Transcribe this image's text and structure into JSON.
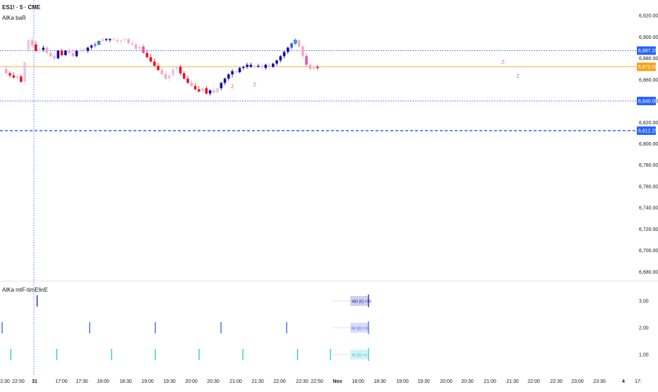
{
  "header": {
    "symbol": "ES1! · 5 · CME",
    "indicator_main": "AlKa baR",
    "indicator_sub": "AlKa mtF-timElinE"
  },
  "colors": {
    "bull_strong": "#1410a8",
    "bull_medium": "#3b5bdb",
    "bull_light": "#e3c8ea",
    "bear_strong": "#ee1122",
    "bear_light": "#f5a8c4",
    "bear_medium": "#e85599",
    "cyan": "#2bb6e8",
    "blue_line": "#2962ff",
    "orange": "#f7a11a",
    "z_marker": "#e056c0"
  },
  "chart_data": [
    {
      "type": "candlestick",
      "x_tick_labels": [
        "2:30",
        "22:50",
        "31",
        "17:00",
        "17:30",
        "18:00",
        "18:30",
        "19:00",
        "19:30",
        "20:00",
        "20:30",
        "21:00",
        "21:30",
        "22:00",
        "22:30",
        "22:50",
        "Nov",
        "18:00",
        "18:30",
        "19:00",
        "19:30",
        "20:00",
        "20:30",
        "21:00",
        "21:30",
        "22:00",
        "22:30",
        "23:00",
        "23:30",
        "4",
        "17:"
      ],
      "y_tick_labels": [
        "6,920.00",
        "6,900.00",
        "6,880.00",
        "6,860.00",
        "6,840.00",
        "6,820.00",
        "6,800.00",
        "6,780.00",
        "6,760.00",
        "6,740.00",
        "6,720.00",
        "6,700.00",
        "6,680.00"
      ],
      "ylim": [
        6674,
        6928
      ],
      "horizontal_lines": [
        {
          "value": 6887.25,
          "label": "6,887.25",
          "style": "dotted"
        },
        {
          "value": 6872.0,
          "label": "6,872.00",
          "style": "solid-orange"
        },
        {
          "value": 6840.0,
          "label": "6,840.00",
          "style": "dotted"
        },
        {
          "value": 6812.25,
          "label": "6,812.25",
          "style": "dashed"
        }
      ],
      "z_markers": [
        {
          "bar": 61,
          "value": 6852,
          "label": "Z"
        },
        {
          "bar": 67,
          "value": 6854,
          "label": "Z"
        },
        {
          "bar": 134,
          "value": 6875,
          "label": "Z"
        },
        {
          "bar": 138,
          "value": 6862,
          "label": "Z"
        }
      ],
      "candles": [
        {
          "o": 6870,
          "h": 6874,
          "l": 6865,
          "c": 6866,
          "k": "bear_light"
        },
        {
          "o": 6866,
          "h": 6868,
          "l": 6862,
          "c": 6864,
          "k": "bear_strong"
        },
        {
          "o": 6864,
          "h": 6867,
          "l": 6861,
          "c": 6862,
          "k": "bear_strong"
        },
        {
          "o": 6862,
          "h": 6865,
          "l": 6860,
          "c": 6863,
          "k": "bear_light"
        },
        {
          "o": 6863,
          "h": 6865,
          "l": 6857,
          "c": 6858,
          "k": "bear_strong"
        },
        {
          "o": 6858,
          "h": 6877,
          "l": 6855,
          "c": 6876,
          "k": "bull_light"
        },
        {
          "o": 6888,
          "h": 6899,
          "l": 6885,
          "c": 6897,
          "k": "bull_light"
        },
        {
          "o": 6897,
          "h": 6900,
          "l": 6890,
          "c": 6892,
          "k": "bear_light"
        },
        {
          "o": 6893,
          "h": 6896,
          "l": 6886,
          "c": 6887,
          "k": "bear_strong"
        },
        {
          "o": 6887,
          "h": 6890,
          "l": 6884,
          "c": 6888,
          "k": "bull_light"
        },
        {
          "o": 6888,
          "h": 6892,
          "l": 6886,
          "c": 6890,
          "k": "bull_strong"
        },
        {
          "o": 6890,
          "h": 6892,
          "l": 6884,
          "c": 6885,
          "k": "bear_light"
        },
        {
          "o": 6885,
          "h": 6888,
          "l": 6881,
          "c": 6882,
          "k": "bear_light"
        },
        {
          "o": 6882,
          "h": 6886,
          "l": 6878,
          "c": 6880,
          "k": "bear_light"
        },
        {
          "o": 6880,
          "h": 6888,
          "l": 6879,
          "c": 6887,
          "k": "bull_strong"
        },
        {
          "o": 6887,
          "h": 6889,
          "l": 6882,
          "c": 6883,
          "k": "bear_strong"
        },
        {
          "o": 6883,
          "h": 6888,
          "l": 6882,
          "c": 6887,
          "k": "bull_strong"
        },
        {
          "o": 6887,
          "h": 6890,
          "l": 6884,
          "c": 6885,
          "k": "bear_light"
        },
        {
          "o": 6885,
          "h": 6888,
          "l": 6881,
          "c": 6882,
          "k": "bear_light"
        },
        {
          "o": 6882,
          "h": 6888,
          "l": 6881,
          "c": 6887,
          "k": "bull_strong"
        },
        {
          "o": 6887,
          "h": 6890,
          "l": 6885,
          "c": 6888,
          "k": "bull_light"
        },
        {
          "o": 6888,
          "h": 6890,
          "l": 6886,
          "c": 6887,
          "k": "bear_light"
        },
        {
          "o": 6887,
          "h": 6891,
          "l": 6885,
          "c": 6890,
          "k": "bull_strong"
        },
        {
          "o": 6890,
          "h": 6893,
          "l": 6888,
          "c": 6892,
          "k": "bull_strong"
        },
        {
          "o": 6892,
          "h": 6895,
          "l": 6890,
          "c": 6893,
          "k": "bull_medium"
        },
        {
          "o": 6893,
          "h": 6897,
          "l": 6892,
          "c": 6896,
          "k": "cyan"
        },
        {
          "o": 6896,
          "h": 6899,
          "l": 6895,
          "c": 6898,
          "k": "bull_light"
        },
        {
          "o": 6898,
          "h": 6899,
          "l": 6896,
          "c": 6897,
          "k": "bull_strong"
        },
        {
          "o": 6897,
          "h": 6899,
          "l": 6895,
          "c": 6898,
          "k": "bull_strong"
        },
        {
          "o": 6898,
          "h": 6900,
          "l": 6896,
          "c": 6897,
          "k": "bull_light"
        },
        {
          "o": 6897,
          "h": 6899,
          "l": 6894,
          "c": 6896,
          "k": "bear_light"
        },
        {
          "o": 6896,
          "h": 6898,
          "l": 6893,
          "c": 6897,
          "k": "bull_light"
        },
        {
          "o": 6897,
          "h": 6899,
          "l": 6895,
          "c": 6898,
          "k": "bull_light"
        },
        {
          "o": 6898,
          "h": 6899,
          "l": 6893,
          "c": 6894,
          "k": "bear_light"
        },
        {
          "o": 6894,
          "h": 6897,
          "l": 6891,
          "c": 6893,
          "k": "bear_light"
        },
        {
          "o": 6893,
          "h": 6895,
          "l": 6888,
          "c": 6889,
          "k": "bear_light"
        },
        {
          "o": 6889,
          "h": 6893,
          "l": 6887,
          "c": 6891,
          "k": "bull_light"
        },
        {
          "o": 6891,
          "h": 6893,
          "l": 6884,
          "c": 6885,
          "k": "bear_medium"
        },
        {
          "o": 6885,
          "h": 6888,
          "l": 6880,
          "c": 6881,
          "k": "bear_strong"
        },
        {
          "o": 6881,
          "h": 6884,
          "l": 6876,
          "c": 6877,
          "k": "bear_strong"
        },
        {
          "o": 6877,
          "h": 6880,
          "l": 6872,
          "c": 6873,
          "k": "bear_strong"
        },
        {
          "o": 6873,
          "h": 6876,
          "l": 6868,
          "c": 6869,
          "k": "bear_strong"
        },
        {
          "o": 6869,
          "h": 6872,
          "l": 6864,
          "c": 6865,
          "k": "bear_light"
        },
        {
          "o": 6865,
          "h": 6868,
          "l": 6860,
          "c": 6861,
          "k": "bear_light"
        },
        {
          "o": 6861,
          "h": 6866,
          "l": 6858,
          "c": 6864,
          "k": "bull_light"
        },
        {
          "o": 6864,
          "h": 6872,
          "l": 6862,
          "c": 6870,
          "k": "bull_light"
        },
        {
          "o": 6870,
          "h": 6874,
          "l": 6866,
          "c": 6872,
          "k": "bull_light"
        },
        {
          "o": 6872,
          "h": 6874,
          "l": 6864,
          "c": 6866,
          "k": "bear_strong"
        },
        {
          "o": 6866,
          "h": 6868,
          "l": 6860,
          "c": 6861,
          "k": "bear_strong"
        },
        {
          "o": 6861,
          "h": 6864,
          "l": 6856,
          "c": 6857,
          "k": "bear_strong"
        },
        {
          "o": 6857,
          "h": 6860,
          "l": 6853,
          "c": 6854,
          "k": "bear_light"
        },
        {
          "o": 6854,
          "h": 6857,
          "l": 6850,
          "c": 6851,
          "k": "bear_strong"
        },
        {
          "o": 6851,
          "h": 6854,
          "l": 6848,
          "c": 6849,
          "k": "bear_strong"
        },
        {
          "o": 6849,
          "h": 6853,
          "l": 6847,
          "c": 6852,
          "k": "bull_light"
        },
        {
          "o": 6852,
          "h": 6854,
          "l": 6846,
          "c": 6847,
          "k": "bear_strong"
        },
        {
          "o": 6847,
          "h": 6851,
          "l": 6845,
          "c": 6850,
          "k": "bull_strong"
        },
        {
          "o": 6850,
          "h": 6853,
          "l": 6847,
          "c": 6848,
          "k": "bear_light"
        },
        {
          "o": 6848,
          "h": 6853,
          "l": 6847,
          "c": 6852,
          "k": "bull_light"
        },
        {
          "o": 6852,
          "h": 6858,
          "l": 6850,
          "c": 6857,
          "k": "bull_strong"
        },
        {
          "o": 6857,
          "h": 6862,
          "l": 6855,
          "c": 6861,
          "k": "bull_strong"
        },
        {
          "o": 6861,
          "h": 6866,
          "l": 6859,
          "c": 6865,
          "k": "bull_strong"
        },
        {
          "o": 6865,
          "h": 6870,
          "l": 6862,
          "c": 6868,
          "k": "bull_strong"
        },
        {
          "o": 6868,
          "h": 6870,
          "l": 6865,
          "c": 6867,
          "k": "bull_light"
        },
        {
          "o": 6867,
          "h": 6872,
          "l": 6866,
          "c": 6871,
          "k": "bull_strong"
        },
        {
          "o": 6871,
          "h": 6873,
          "l": 6869,
          "c": 6872,
          "k": "bull_strong"
        },
        {
          "o": 6872,
          "h": 6876,
          "l": 6870,
          "c": 6874,
          "k": "bull_strong"
        },
        {
          "o": 6874,
          "h": 6876,
          "l": 6871,
          "c": 6872,
          "k": "bull_strong"
        },
        {
          "o": 6872,
          "h": 6874,
          "l": 6870,
          "c": 6873,
          "k": "bull_light"
        },
        {
          "o": 6873,
          "h": 6875,
          "l": 6871,
          "c": 6873,
          "k": "bull_strong"
        },
        {
          "o": 6873,
          "h": 6875,
          "l": 6870,
          "c": 6871,
          "k": "bull_light"
        },
        {
          "o": 6871,
          "h": 6875,
          "l": 6869,
          "c": 6874,
          "k": "bull_strong"
        },
        {
          "o": 6874,
          "h": 6876,
          "l": 6870,
          "c": 6872,
          "k": "bull_light"
        },
        {
          "o": 6872,
          "h": 6876,
          "l": 6871,
          "c": 6875,
          "k": "bull_strong"
        },
        {
          "o": 6875,
          "h": 6879,
          "l": 6873,
          "c": 6878,
          "k": "bull_strong"
        },
        {
          "o": 6878,
          "h": 6883,
          "l": 6876,
          "c": 6882,
          "k": "bull_strong"
        },
        {
          "o": 6882,
          "h": 6887,
          "l": 6880,
          "c": 6886,
          "k": "bull_strong"
        },
        {
          "o": 6886,
          "h": 6891,
          "l": 6884,
          "c": 6890,
          "k": "bull_strong"
        },
        {
          "o": 6890,
          "h": 6895,
          "l": 6888,
          "c": 6894,
          "k": "bull_medium"
        },
        {
          "o": 6894,
          "h": 6899,
          "l": 6892,
          "c": 6897,
          "k": "cyan"
        },
        {
          "o": 6897,
          "h": 6898,
          "l": 6890,
          "c": 6891,
          "k": "bear_light"
        },
        {
          "o": 6891,
          "h": 6893,
          "l": 6880,
          "c": 6882,
          "k": "bear_light"
        },
        {
          "o": 6882,
          "h": 6885,
          "l": 6872,
          "c": 6874,
          "k": "bear_medium"
        },
        {
          "o": 6874,
          "h": 6876,
          "l": 6868,
          "c": 6870,
          "k": "bear_light"
        },
        {
          "o": 6870,
          "h": 6873,
          "l": 6868,
          "c": 6872,
          "k": "bull_light"
        },
        {
          "o": 6872,
          "h": 6874,
          "l": 6869,
          "c": 6871,
          "k": "bear_strong"
        }
      ]
    },
    {
      "type": "timeline",
      "y_tick_labels": [
        "3.00",
        "2.00",
        "1.00"
      ],
      "rows": [
        {
          "level": 3,
          "label": "480 [0] +10",
          "color": "#1410a8",
          "ticks": [
            16
          ]
        },
        {
          "level": 2,
          "label": "60 [0] +10",
          "color": "#3b5bdb",
          "ticks": [
            0,
            40,
            70,
            100,
            130
          ]
        },
        {
          "level": 1,
          "label": "45 [0] +4",
          "color": "#2bc4d0",
          "ticks": [
            4,
            25,
            50,
            70,
            90,
            110,
            135,
            150
          ]
        }
      ]
    }
  ]
}
